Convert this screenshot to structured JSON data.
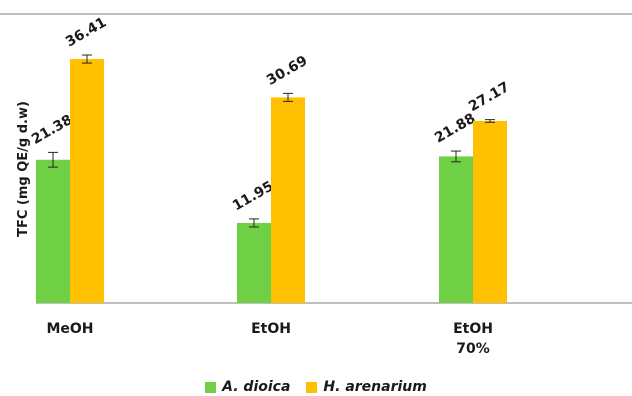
{
  "chart_data": {
    "type": "bar",
    "title": "",
    "xlabel": "",
    "ylabel": "TFC (mg QE/g d.w)",
    "ylim": [
      0,
      40
    ],
    "grid": false,
    "legend_position": "bottom",
    "categories": [
      [
        "MeOH"
      ],
      [
        "EtOH"
      ],
      [
        "EtOH",
        "70%"
      ]
    ],
    "series": [
      {
        "name": "A. dioica",
        "color": "#6fcf45",
        "values": [
          21.38,
          11.95,
          21.88
        ],
        "errors": [
          1.1,
          0.6,
          0.8
        ]
      },
      {
        "name": "H. arenarium",
        "color": "#ffc000",
        "values": [
          36.41,
          30.69,
          27.17
        ],
        "errors": [
          0.6,
          0.6,
          0.2
        ]
      }
    ],
    "data_labels": [
      [
        "21.38",
        "11.95",
        "21.88"
      ],
      [
        "36.41",
        "30.69",
        "27.17"
      ]
    ]
  },
  "colors": {
    "axis": "#7f7f7f",
    "error_bar": "#262626",
    "text": "#1a1a1a"
  }
}
